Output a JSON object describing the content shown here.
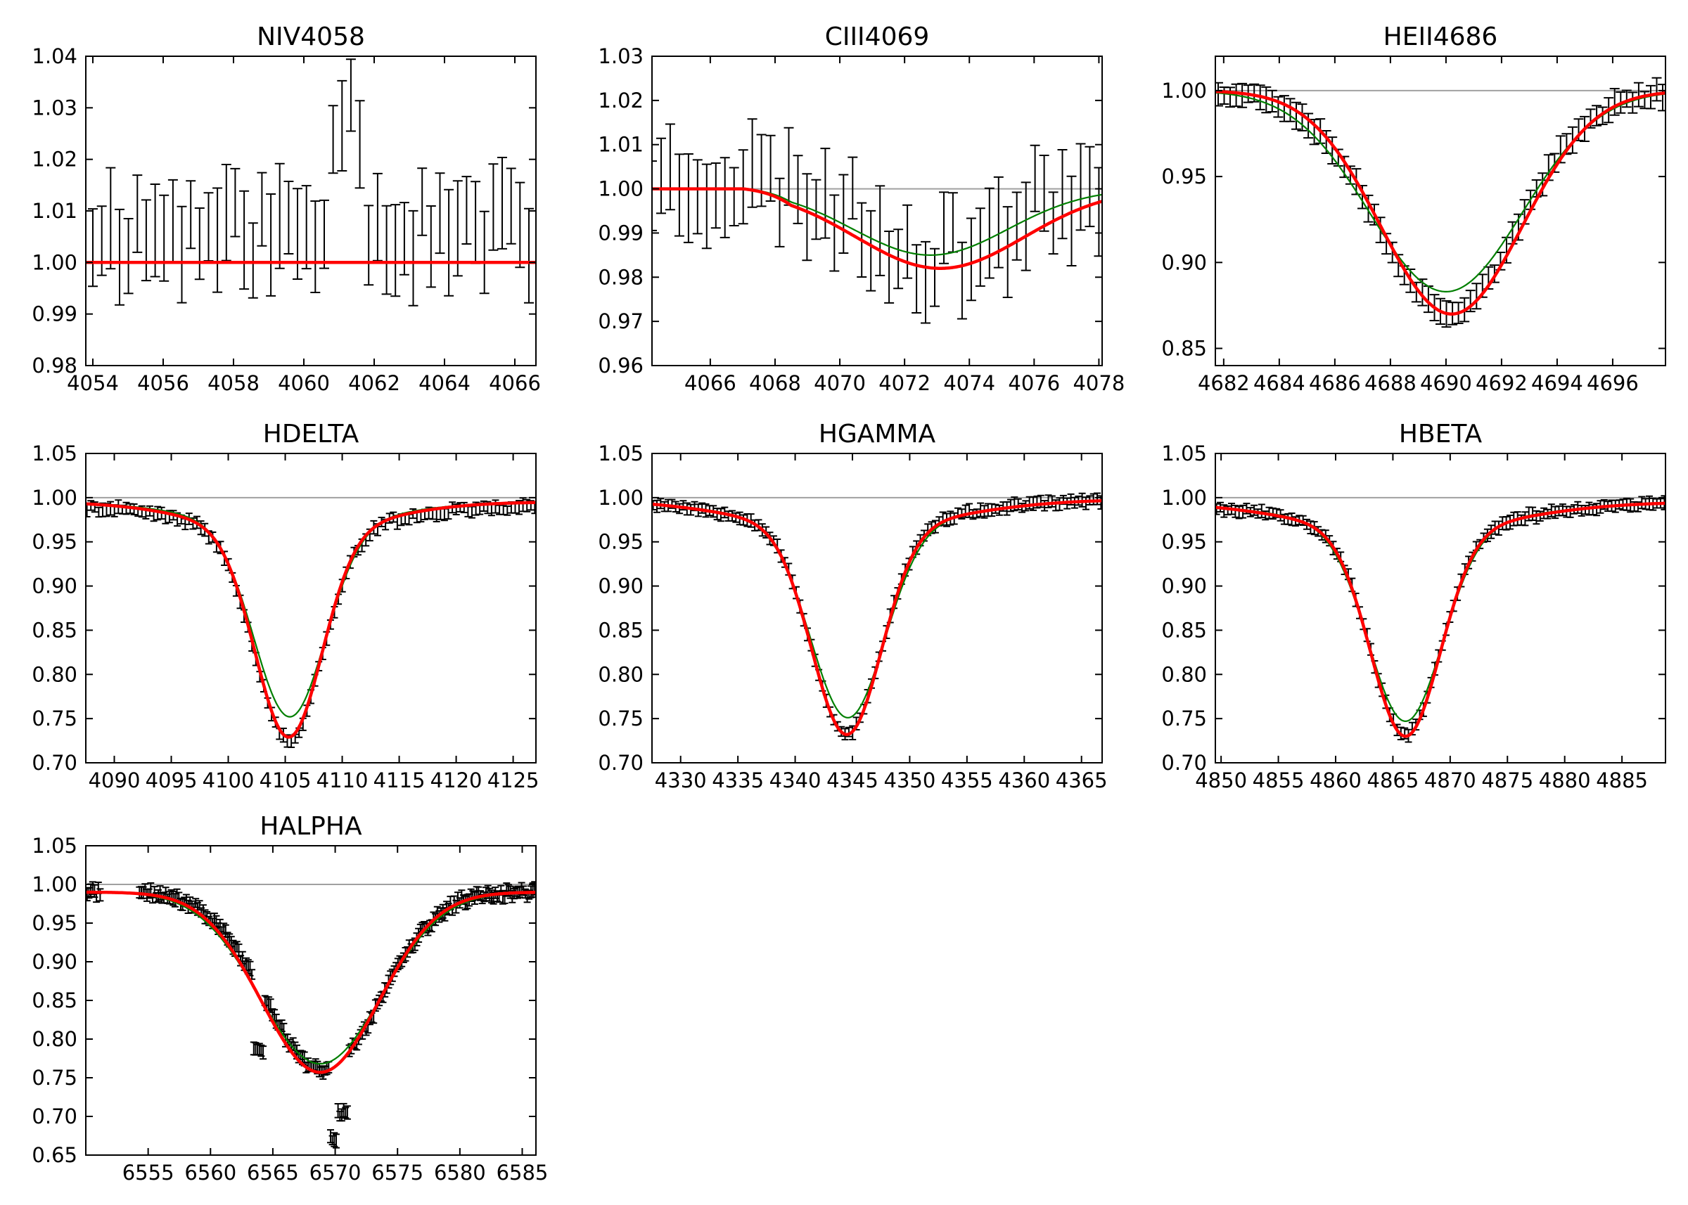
{
  "figure": {
    "background": "#ffffff"
  },
  "colors": {
    "errorbar": "#000000",
    "reference": "#a0a0a0",
    "model_fit": "#ff0000",
    "alt_fit": "#007f00"
  },
  "chart_data": [
    {
      "type": "line",
      "title": "NIV4058",
      "xlim": [
        4053.8,
        4066.6
      ],
      "ylim": [
        0.98,
        1.04
      ],
      "xticks": [
        4054,
        4056,
        4058,
        4060,
        4062,
        4064,
        4066
      ],
      "yticks": [
        0.98,
        0.99,
        1.0,
        1.01,
        1.02,
        1.03,
        1.04
      ],
      "ytick_decimals": 2,
      "reference_level": null,
      "observed": {
        "x_start": 4054.0,
        "x_end": 4066.4,
        "n": 50,
        "baseline": 1.006,
        "err": 0.008,
        "noise_amp": 0.006,
        "seed": 11,
        "anomalies": [
          {
            "at": 4061.2,
            "value": 1.0275
          }
        ]
      },
      "fits": [
        {
          "name": "model",
          "color": "#ff0000",
          "width": 4.5,
          "baseline": 1.0,
          "center": 4060,
          "depth": 0,
          "sigma": 1
        }
      ]
    },
    {
      "type": "line",
      "title": "CIII4069",
      "xlim": [
        4064.2,
        4078.1
      ],
      "ylim": [
        0.96,
        1.03
      ],
      "xticks": [
        4066,
        4068,
        4070,
        4072,
        4074,
        4076,
        4078
      ],
      "yticks": [
        0.96,
        0.97,
        0.98,
        0.99,
        1.0,
        1.01,
        1.02,
        1.03
      ],
      "ytick_decimals": 2,
      "reference_level": 1.0,
      "observed": {
        "x_start": 4064.2,
        "x_end": 4078.0,
        "n": 50,
        "baseline": 1.002,
        "err": 0.008,
        "noise_amp": 0.007,
        "seed": 23,
        "profile": {
          "center": 4073.0,
          "depth": 0.017,
          "sigma": 2.2
        }
      },
      "fits": [
        {
          "name": "alt",
          "color": "#007f00",
          "width": 2.2,
          "baseline": 1.0,
          "center": 4072.8,
          "depth": 0.015,
          "sigma": 2.4,
          "lo": 4067.0
        },
        {
          "name": "model",
          "color": "#ff0000",
          "width": 4.5,
          "baseline": 1.0,
          "center": 4073.1,
          "depth": 0.018,
          "sigma": 2.6,
          "lo": 4067.0
        }
      ]
    },
    {
      "type": "line",
      "title": "HEII4686",
      "xlim": [
        4681.7,
        4697.9
      ],
      "ylim": [
        0.84,
        1.02
      ],
      "xticks": [
        4682,
        4684,
        4686,
        4688,
        4690,
        4692,
        4694,
        4696
      ],
      "yticks": [
        0.85,
        0.9,
        0.95,
        1.0
      ],
      "ytick_decimals": 2,
      "reference_level": 1.0,
      "observed": {
        "x_start": 4681.8,
        "x_end": 4697.8,
        "n": 75,
        "baseline": 1.0,
        "err": 0.006,
        "noise_amp": 0.003,
        "seed": 37,
        "profile": {
          "center": 4690.1,
          "depth": 0.128,
          "sigma": 2.55
        }
      },
      "fits": [
        {
          "name": "alt",
          "color": "#007f00",
          "width": 2.2,
          "baseline": 1.0,
          "center": 4690.0,
          "depth": 0.117,
          "sigma": 2.75
        },
        {
          "name": "model",
          "color": "#ff0000",
          "width": 4.5,
          "baseline": 1.0,
          "center": 4690.2,
          "depth": 0.13,
          "sigma": 2.55
        }
      ]
    },
    {
      "type": "line",
      "title": "HDELTA",
      "xlim": [
        4087.5,
        4127.0
      ],
      "ylim": [
        0.7,
        1.05
      ],
      "xticks": [
        4090,
        4095,
        4100,
        4105,
        4110,
        4115,
        4120,
        4125
      ],
      "yticks": [
        0.7,
        0.75,
        0.8,
        0.85,
        0.9,
        0.95,
        1.0,
        1.05
      ],
      "ytick_decimals": 2,
      "reference_level": 1.0,
      "observed": {
        "x_start": 4087.6,
        "x_end": 4126.9,
        "n": 115,
        "baseline": 0.99,
        "err": 0.006,
        "noise_amp": 0.004,
        "seed": 41,
        "profile": {
          "center": 4105.3,
          "depth": 0.235,
          "sigma": 2.9,
          "wing_depth": 0.03,
          "wing_sigma": 7.5
        }
      },
      "fits": [
        {
          "name": "alt",
          "color": "#007f00",
          "width": 2.2,
          "baseline": 0.995,
          "center": 4105.4,
          "depth": 0.215,
          "sigma": 3.1,
          "wing_depth": 0.028,
          "wing_sigma": 7.5
        },
        {
          "name": "model",
          "color": "#ff0000",
          "width": 4.5,
          "baseline": 0.995,
          "center": 4105.3,
          "depth": 0.232,
          "sigma": 2.9,
          "wing_depth": 0.034,
          "wing_sigma": 7.5
        }
      ]
    },
    {
      "type": "line",
      "title": "HGAMMA",
      "xlim": [
        4327.5,
        4366.8
      ],
      "ylim": [
        0.7,
        1.05
      ],
      "xticks": [
        4330,
        4335,
        4340,
        4345,
        4350,
        4355,
        4360,
        4365
      ],
      "yticks": [
        0.7,
        0.75,
        0.8,
        0.85,
        0.9,
        0.95,
        1.0,
        1.05
      ],
      "ytick_decimals": 2,
      "reference_level": 1.0,
      "observed": {
        "x_start": 4327.6,
        "x_end": 4366.7,
        "n": 120,
        "baseline": 0.998,
        "err": 0.006,
        "noise_amp": 0.003,
        "seed": 53,
        "profile": {
          "center": 4344.5,
          "depth": 0.235,
          "sigma": 3.0,
          "wing_depth": 0.03,
          "wing_sigma": 9.0
        }
      },
      "fits": [
        {
          "name": "alt",
          "color": "#007f00",
          "width": 2.2,
          "baseline": 0.998,
          "center": 4344.6,
          "depth": 0.217,
          "sigma": 3.2,
          "wing_depth": 0.03,
          "wing_sigma": 9.0
        },
        {
          "name": "model",
          "color": "#ff0000",
          "width": 4.5,
          "baseline": 0.998,
          "center": 4344.5,
          "depth": 0.234,
          "sigma": 3.0,
          "wing_depth": 0.032,
          "wing_sigma": 9.0
        }
      ]
    },
    {
      "type": "line",
      "title": "HBETA",
      "xlim": [
        4849.5,
        4888.8
      ],
      "ylim": [
        0.7,
        1.05
      ],
      "xticks": [
        4850,
        4855,
        4860,
        4865,
        4870,
        4875,
        4880,
        4885
      ],
      "yticks": [
        0.7,
        0.75,
        0.8,
        0.85,
        0.9,
        0.95,
        1.0,
        1.05
      ],
      "ytick_decimals": 2,
      "reference_level": 1.0,
      "observed": {
        "x_start": 4849.6,
        "x_end": 4888.7,
        "n": 120,
        "baseline": 0.994,
        "err": 0.006,
        "noise_amp": 0.003,
        "seed": 67,
        "profile": {
          "center": 4866.1,
          "depth": 0.232,
          "sigma": 3.0,
          "wing_depth": 0.03,
          "wing_sigma": 9.0
        }
      },
      "fits": [
        {
          "name": "alt",
          "color": "#007f00",
          "width": 2.2,
          "baseline": 0.995,
          "center": 4866.1,
          "depth": 0.218,
          "sigma": 3.2,
          "wing_depth": 0.03,
          "wing_sigma": 9.0
        },
        {
          "name": "model",
          "color": "#ff0000",
          "width": 4.5,
          "baseline": 0.995,
          "center": 4866.1,
          "depth": 0.232,
          "sigma": 3.0,
          "wing_depth": 0.033,
          "wing_sigma": 9.0
        }
      ]
    },
    {
      "type": "line",
      "title": "HALPHA",
      "xlim": [
        6550.0,
        6586.1
      ],
      "ylim": [
        0.65,
        1.05
      ],
      "xticks": [
        6555,
        6560,
        6565,
        6570,
        6575,
        6580,
        6585
      ],
      "yticks": [
        0.65,
        0.7,
        0.75,
        0.8,
        0.85,
        0.9,
        0.95,
        1.0,
        1.05
      ],
      "ytick_decimals": 2,
      "reference_level": 1.0,
      "observed": {
        "x_start": 6550.1,
        "x_end": 6586.0,
        "n": 240,
        "baseline": 0.99,
        "err": 0.007,
        "noise_amp": 0.006,
        "seed": 71,
        "gap": [
          6551.2,
          6554.3
        ],
        "profile": {
          "center": 6569.0,
          "depth": 0.23,
          "sigma": 4.6
        },
        "anomalies": [
          {
            "at": 6563.9,
            "value": 0.785
          },
          {
            "at": 6570.0,
            "value": 0.67
          },
          {
            "at": 6570.6,
            "value": 0.705
          }
        ]
      },
      "fits": [
        {
          "name": "alt",
          "color": "#007f00",
          "width": 2.2,
          "baseline": 0.99,
          "center": 6568.8,
          "depth": 0.222,
          "sigma": 4.9
        },
        {
          "name": "model",
          "color": "#ff0000",
          "width": 4.5,
          "baseline": 0.99,
          "center": 6568.8,
          "depth": 0.233,
          "sigma": 4.7
        }
      ]
    }
  ]
}
